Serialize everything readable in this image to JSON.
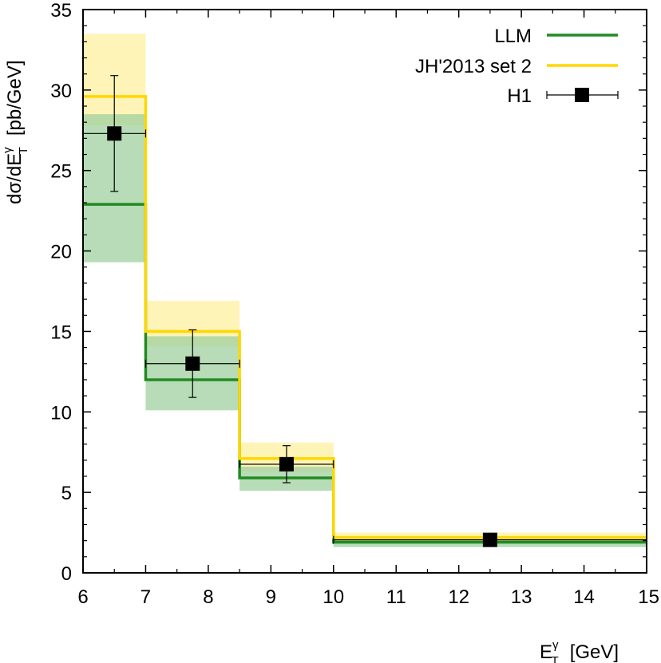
{
  "chart_data": {
    "type": "line",
    "title": "",
    "xlabel": {
      "main": "E",
      "sup": "γ",
      "sub": "T",
      "unit": "[GeV]"
    },
    "ylabel": {
      "prefix": "dσ/dE",
      "sup": "γ",
      "sub": "T",
      "unit": "[pb/GeV]"
    },
    "xlim": [
      6,
      15
    ],
    "ylim": [
      0,
      35
    ],
    "xticks": [
      6,
      7,
      8,
      9,
      10,
      11,
      12,
      13,
      14,
      15
    ],
    "yticks": [
      0,
      5,
      10,
      15,
      20,
      25,
      30,
      35
    ],
    "bins": [
      [
        6,
        7
      ],
      [
        7,
        8.5
      ],
      [
        8.5,
        10
      ],
      [
        10,
        15
      ]
    ],
    "legend_position": "top-right",
    "series": [
      {
        "name": "LLM",
        "kind": "histogram-band",
        "color": "#228b22",
        "band_color": "#9fd09f",
        "values": [
          22.9,
          12.0,
          5.9,
          1.9
        ],
        "band_low": [
          19.3,
          10.1,
          5.1,
          1.6
        ],
        "band_high": [
          28.5,
          14.7,
          6.6,
          2.1
        ]
      },
      {
        "name": "JH'2013 set 2",
        "kind": "histogram-band",
        "color": "#ffd700",
        "band_color": "#fff09f",
        "values": [
          29.6,
          15.0,
          7.1,
          2.2
        ],
        "band_low": [
          27.8,
          14.1,
          6.3,
          1.9
        ],
        "band_high": [
          33.5,
          16.9,
          8.1,
          2.5
        ]
      },
      {
        "name": "H1",
        "kind": "data-points",
        "color": "#000000",
        "points": [
          {
            "x": 6.5,
            "y": 27.3,
            "xerr": [
              6.0,
              7.0
            ],
            "yerr": [
              23.7,
              30.9
            ]
          },
          {
            "x": 7.75,
            "y": 13.0,
            "xerr": [
              7.0,
              8.5
            ],
            "yerr": [
              10.9,
              15.1
            ]
          },
          {
            "x": 9.25,
            "y": 6.75,
            "xerr": [
              8.5,
              10.0
            ],
            "yerr": [
              5.6,
              7.9
            ]
          },
          {
            "x": 12.5,
            "y": 2.05,
            "xerr": [
              10.0,
              15.0
            ],
            "yerr": [
              1.85,
              2.25
            ]
          }
        ]
      }
    ]
  }
}
